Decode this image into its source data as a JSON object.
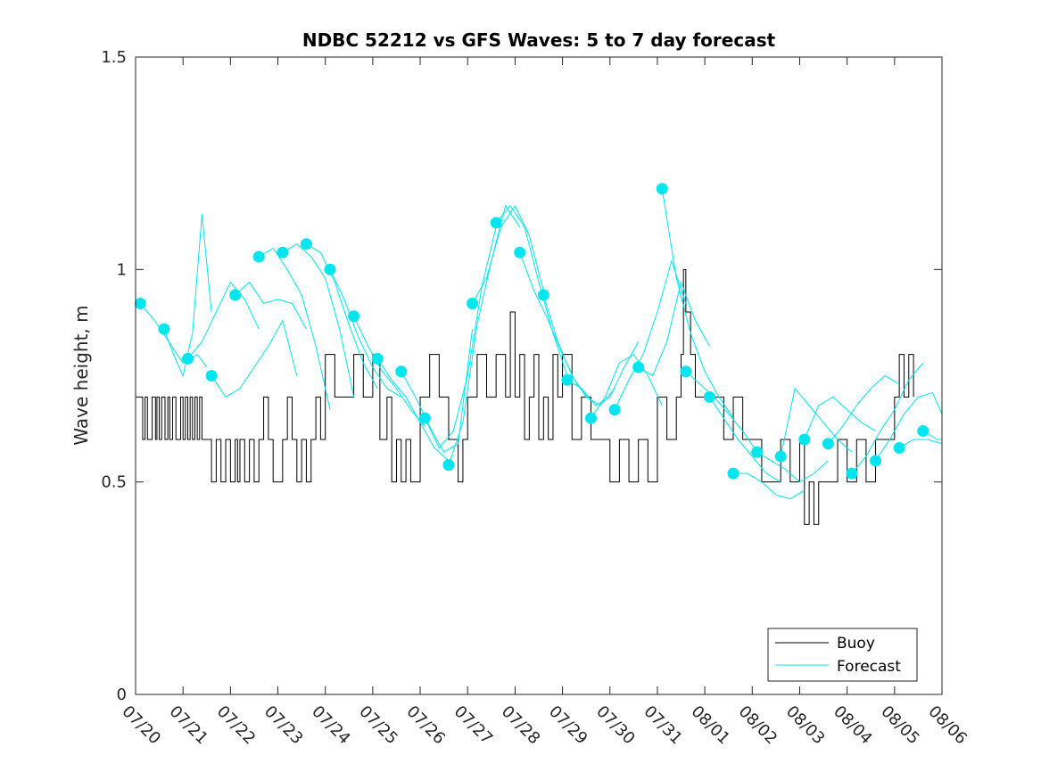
{
  "chart_data": {
    "type": "line",
    "title": "NDBC 52212 vs GFS Waves: 5 to 7 day forecast",
    "xlabel": "",
    "ylabel": "Wave height, m",
    "x_ticks": [
      "07/20",
      "07/21",
      "07/22",
      "07/23",
      "07/24",
      "07/25",
      "07/26",
      "07/27",
      "07/28",
      "07/29",
      "07/30",
      "07/31",
      "08/01",
      "08/02",
      "08/03",
      "08/04",
      "08/05",
      "08/06"
    ],
    "y_ticks": [
      "0",
      "0.5",
      "1",
      "1.5"
    ],
    "y_tick_values": [
      0,
      0.5,
      1,
      1.5
    ],
    "xlim_days": [
      0,
      17
    ],
    "ylim": [
      0,
      1.5
    ],
    "grid": false,
    "legend": {
      "placement": "bottom-right",
      "entries": [
        "Buoy",
        "Forecast"
      ]
    },
    "colors": {
      "buoy": "#000000",
      "forecast": "#00e5ee",
      "axis": "#262626"
    },
    "series": [
      {
        "name": "Buoy",
        "x": [
          0,
          0.15,
          0.2,
          0.25,
          0.35,
          0.42,
          0.45,
          0.5,
          0.55,
          0.62,
          0.68,
          0.72,
          0.78,
          0.85,
          0.95,
          1.0,
          1.05,
          1.1,
          1.15,
          1.2,
          1.25,
          1.3,
          1.35,
          1.4,
          1.45,
          1.5,
          1.6,
          1.7,
          1.8,
          1.9,
          2.0,
          2.1,
          2.15,
          2.2,
          2.3,
          2.4,
          2.5,
          2.6,
          2.7,
          2.8,
          2.9,
          3.0,
          3.1,
          3.2,
          3.3,
          3.4,
          3.5,
          3.6,
          3.7,
          3.8,
          3.9,
          4.0,
          4.2,
          4.4,
          4.6,
          4.8,
          5.0,
          5.15,
          5.3,
          5.4,
          5.5,
          5.6,
          5.7,
          5.8,
          6.0,
          6.2,
          6.4,
          6.6,
          6.8,
          6.9,
          7.0,
          7.1,
          7.2,
          7.4,
          7.6,
          7.8,
          7.9,
          8.0,
          8.1,
          8.2,
          8.3,
          8.4,
          8.5,
          8.6,
          8.7,
          8.8,
          8.9,
          9.0,
          9.2,
          9.4,
          9.6,
          9.8,
          10.0,
          10.2,
          10.4,
          10.6,
          10.8,
          11.0,
          11.2,
          11.4,
          11.5,
          11.55,
          11.6,
          11.7,
          11.8,
          12.0,
          12.2,
          12.4,
          12.6,
          12.8,
          13.0,
          13.2,
          13.4,
          13.6,
          13.8,
          14.0,
          14.1,
          14.2,
          14.3,
          14.4,
          14.6,
          14.8,
          15.0,
          15.2,
          15.4,
          15.6,
          15.8,
          16.0,
          16.1,
          16.2,
          16.3,
          16.4
        ],
        "values": [
          0.7,
          0.6,
          0.7,
          0.6,
          0.7,
          0.6,
          0.7,
          0.6,
          0.7,
          0.6,
          0.7,
          0.6,
          0.7,
          0.6,
          0.7,
          0.6,
          0.7,
          0.6,
          0.7,
          0.6,
          0.7,
          0.6,
          0.7,
          0.6,
          0.6,
          0.6,
          0.5,
          0.6,
          0.5,
          0.6,
          0.5,
          0.6,
          0.5,
          0.6,
          0.5,
          0.6,
          0.5,
          0.6,
          0.7,
          0.6,
          0.5,
          0.5,
          0.6,
          0.7,
          0.6,
          0.5,
          0.6,
          0.5,
          0.6,
          0.7,
          0.6,
          0.8,
          0.7,
          0.7,
          0.8,
          0.7,
          0.8,
          0.6,
          0.7,
          0.5,
          0.6,
          0.5,
          0.6,
          0.5,
          0.7,
          0.8,
          0.7,
          0.6,
          0.5,
          0.6,
          0.7,
          0.7,
          0.8,
          0.7,
          0.8,
          0.7,
          0.9,
          0.7,
          0.8,
          0.6,
          0.7,
          0.8,
          0.6,
          0.7,
          0.6,
          0.8,
          0.7,
          0.8,
          0.6,
          0.7,
          0.6,
          0.6,
          0.5,
          0.6,
          0.5,
          0.6,
          0.5,
          0.7,
          0.6,
          0.7,
          0.8,
          1.0,
          0.9,
          0.8,
          0.7,
          0.7,
          0.7,
          0.6,
          0.7,
          0.6,
          0.6,
          0.5,
          0.5,
          0.6,
          0.5,
          0.6,
          0.4,
          0.5,
          0.4,
          0.5,
          0.5,
          0.6,
          0.5,
          0.6,
          0.5,
          0.6,
          0.6,
          0.7,
          0.8,
          0.7,
          0.8,
          0.7
        ]
      },
      {
        "name": "Forecast",
        "segments": [
          {
            "x": [
              0.1,
              0.4,
              0.7,
              1.0,
              1.3,
              1.5
            ],
            "values": [
              0.92,
              0.88,
              0.83,
              0.78,
              0.8,
              0.77
            ]
          },
          {
            "x": [
              0.6,
              0.8,
              1.0,
              1.2,
              1.4,
              1.6
            ],
            "values": [
              0.86,
              0.8,
              0.75,
              0.85,
              1.13,
              0.9
            ]
          },
          {
            "x": [
              1.1,
              1.4,
              1.7,
              2.0,
              2.3,
              2.6
            ],
            "values": [
              0.79,
              0.83,
              0.9,
              0.97,
              0.93,
              0.86
            ]
          },
          {
            "x": [
              1.6,
              1.9,
              2.2,
              2.5,
              2.8,
              3.1,
              3.4
            ],
            "values": [
              0.75,
              0.7,
              0.72,
              0.77,
              0.82,
              0.88,
              0.75
            ]
          },
          {
            "x": [
              2.1,
              2.4,
              2.7,
              3.0,
              3.3,
              3.6
            ],
            "values": [
              0.94,
              0.97,
              0.92,
              0.93,
              0.92,
              0.86
            ]
          },
          {
            "x": [
              2.6,
              2.9,
              3.2,
              3.5,
              3.8,
              4.1
            ],
            "values": [
              1.03,
              1.05,
              1.0,
              0.94,
              0.82,
              0.67
            ]
          },
          {
            "x": [
              3.1,
              3.4,
              3.7,
              4.0,
              4.3,
              4.6
            ],
            "values": [
              1.04,
              1.06,
              1.03,
              0.98,
              0.86,
              0.7
            ]
          },
          {
            "x": [
              3.6,
              3.9,
              4.2,
              4.5,
              4.8,
              5.1
            ],
            "values": [
              1.06,
              1.04,
              0.97,
              0.87,
              0.78,
              0.72
            ]
          },
          {
            "x": [
              4.1,
              4.4,
              4.7,
              5.0,
              5.3,
              5.6
            ],
            "values": [
              1.0,
              0.93,
              0.84,
              0.77,
              0.72,
              0.7
            ]
          },
          {
            "x": [
              4.6,
              4.9,
              5.2,
              5.5,
              5.8,
              6.1
            ],
            "values": [
              0.89,
              0.82,
              0.76,
              0.72,
              0.67,
              0.63
            ]
          },
          {
            "x": [
              5.1,
              5.4,
              5.7,
              6.0,
              6.3,
              6.6
            ],
            "values": [
              0.79,
              0.74,
              0.7,
              0.64,
              0.58,
              0.55
            ]
          },
          {
            "x": [
              5.6,
              5.9,
              6.2,
              6.5,
              6.8,
              7.1
            ],
            "values": [
              0.76,
              0.7,
              0.63,
              0.57,
              0.59,
              0.86
            ]
          },
          {
            "x": [
              6.1,
              6.4,
              6.7,
              7.0,
              7.3,
              7.6
            ],
            "values": [
              0.65,
              0.58,
              0.62,
              0.75,
              0.96,
              1.1
            ]
          },
          {
            "x": [
              6.6,
              6.9,
              7.2,
              7.5,
              7.8,
              8.1
            ],
            "values": [
              0.54,
              0.64,
              0.87,
              1.02,
              1.15,
              1.1
            ]
          },
          {
            "x": [
              7.1,
              7.4,
              7.7,
              8.0,
              8.3,
              8.6
            ],
            "values": [
              0.92,
              0.98,
              1.1,
              1.15,
              1.08,
              0.95
            ]
          },
          {
            "x": [
              7.6,
              7.9,
              8.2,
              8.5,
              8.8,
              9.1
            ],
            "values": [
              1.11,
              1.15,
              1.1,
              0.97,
              0.85,
              0.75
            ]
          },
          {
            "x": [
              8.1,
              8.4,
              8.7,
              9.0,
              9.3,
              9.6
            ],
            "values": [
              1.04,
              0.95,
              0.88,
              0.8,
              0.73,
              0.69
            ]
          },
          {
            "x": [
              8.6,
              8.9,
              9.2,
              9.5,
              9.8,
              10.1
            ],
            "values": [
              0.94,
              0.83,
              0.75,
              0.7,
              0.68,
              0.72
            ]
          },
          {
            "x": [
              9.1,
              9.4,
              9.7,
              10.0,
              10.3,
              10.6
            ],
            "values": [
              0.74,
              0.72,
              0.68,
              0.7,
              0.77,
              0.83
            ]
          },
          {
            "x": [
              9.6,
              9.9,
              10.2,
              10.5,
              10.8,
              11.1
            ],
            "values": [
              0.65,
              0.7,
              0.78,
              0.8,
              0.75,
              0.68
            ]
          },
          {
            "x": [
              10.1,
              10.4,
              10.7,
              11.0,
              11.3,
              11.6
            ],
            "values": [
              0.67,
              0.74,
              0.8,
              0.9,
              1.02,
              0.92
            ]
          },
          {
            "x": [
              10.6,
              10.9,
              11.2,
              11.5,
              11.8,
              12.1
            ],
            "values": [
              0.77,
              0.75,
              0.83,
              0.97,
              0.88,
              0.82
            ]
          },
          {
            "x": [
              11.1,
              11.4,
              11.7,
              12.0,
              12.3,
              12.6
            ],
            "values": [
              1.19,
              0.98,
              0.85,
              0.76,
              0.7,
              0.65
            ]
          },
          {
            "x": [
              11.6,
              11.9,
              12.2,
              12.5,
              12.8,
              13.1
            ],
            "values": [
              0.76,
              0.73,
              0.7,
              0.66,
              0.62,
              0.57
            ]
          },
          {
            "x": [
              12.1,
              12.4,
              12.7,
              13.0,
              13.3,
              13.6
            ],
            "values": [
              0.7,
              0.65,
              0.6,
              0.56,
              0.52,
              0.5
            ]
          },
          {
            "x": [
              12.6,
              12.9,
              13.2,
              13.5,
              13.8,
              14.1
            ],
            "values": [
              0.52,
              0.52,
              0.5,
              0.47,
              0.46,
              0.48
            ]
          },
          {
            "x": [
              13.1,
              13.4,
              13.7,
              14.0,
              14.3,
              14.6
            ],
            "values": [
              0.57,
              0.55,
              0.53,
              0.5,
              0.52,
              0.55
            ]
          },
          {
            "x": [
              13.6,
              13.9,
              14.2,
              14.5,
              14.8,
              15.1
            ],
            "values": [
              0.56,
              0.72,
              0.68,
              0.64,
              0.6,
              0.57
            ]
          },
          {
            "x": [
              14.1,
              14.4,
              14.7,
              15.0,
              15.3,
              15.6
            ],
            "values": [
              0.6,
              0.68,
              0.7,
              0.67,
              0.64,
              0.62
            ]
          },
          {
            "x": [
              14.6,
              14.9,
              15.2,
              15.5,
              15.8,
              16.1
            ],
            "values": [
              0.59,
              0.63,
              0.68,
              0.72,
              0.75,
              0.73
            ]
          },
          {
            "x": [
              15.1,
              15.4,
              15.7,
              16.0,
              16.3,
              16.6
            ],
            "values": [
              0.52,
              0.56,
              0.62,
              0.67,
              0.74,
              0.78
            ]
          },
          {
            "x": [
              15.6,
              15.9,
              16.2,
              16.5,
              16.8,
              17.0
            ],
            "values": [
              0.55,
              0.6,
              0.66,
              0.7,
              0.71,
              0.66
            ]
          },
          {
            "x": [
              16.1,
              16.4,
              16.7,
              17.0
            ],
            "values": [
              0.58,
              0.6,
              0.6,
              0.59
            ]
          },
          {
            "x": [
              16.6,
              16.9,
              17.0
            ],
            "values": [
              0.62,
              0.6,
              0.6
            ]
          }
        ],
        "markers": {
          "x": [
            0.1,
            0.6,
            1.1,
            1.6,
            2.1,
            2.6,
            3.1,
            3.6,
            4.1,
            4.6,
            5.1,
            5.6,
            6.1,
            6.6,
            7.1,
            7.6,
            8.1,
            8.6,
            9.1,
            9.6,
            10.1,
            10.6,
            11.1,
            11.6,
            12.1,
            12.6,
            13.1,
            13.6,
            14.1,
            14.6,
            15.1,
            15.6,
            16.1,
            16.6
          ],
          "values": [
            0.92,
            0.86,
            0.79,
            0.75,
            0.94,
            1.03,
            1.04,
            1.06,
            1.0,
            0.89,
            0.79,
            0.76,
            0.65,
            0.54,
            0.92,
            1.11,
            1.04,
            0.94,
            0.74,
            0.65,
            0.67,
            0.77,
            1.19,
            0.76,
            0.7,
            0.52,
            0.57,
            0.56,
            0.6,
            0.59,
            0.52,
            0.55,
            0.58,
            0.62
          ]
        }
      }
    ]
  }
}
